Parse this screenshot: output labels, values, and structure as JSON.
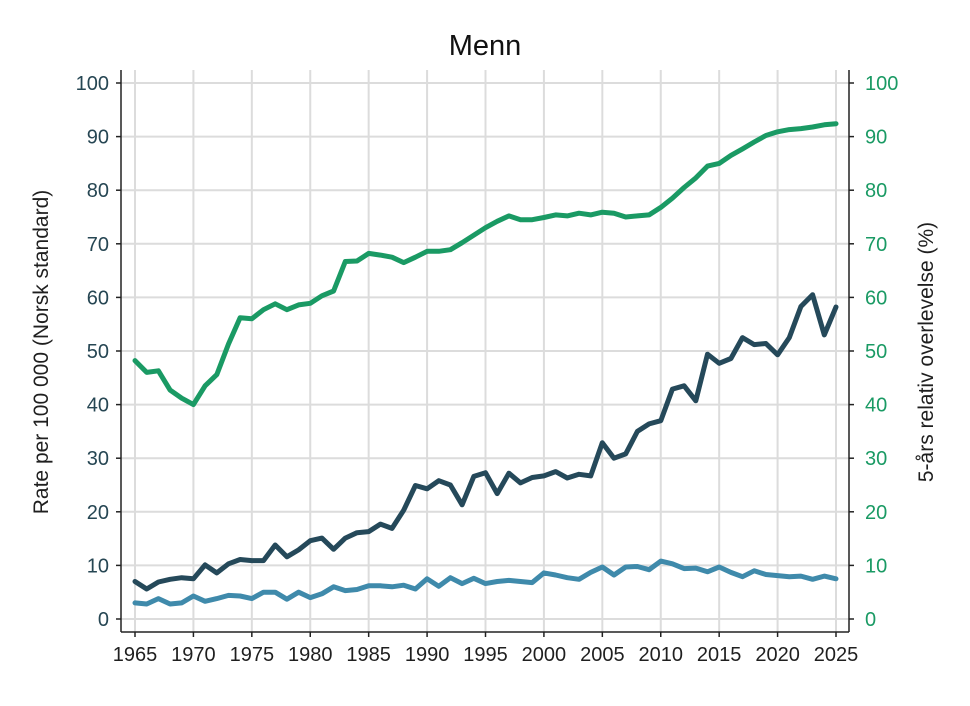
{
  "chart_data": {
    "type": "line",
    "title": "Menn",
    "ylabel": "Rate per 100 000 (Norsk standard)",
    "y2label": "5-års relativ overlevelse (%)",
    "xlim": [
      1965,
      2025
    ],
    "ylim": [
      0,
      100
    ],
    "y2lim": [
      0,
      100
    ],
    "x_ticks": [
      1965,
      1970,
      1975,
      1980,
      1985,
      1990,
      1995,
      2000,
      2005,
      2010,
      2015,
      2020,
      2025
    ],
    "y_ticks": [
      0,
      10,
      20,
      30,
      40,
      50,
      60,
      70,
      80,
      90,
      100
    ],
    "grid": true,
    "x": [
      1965,
      1966,
      1967,
      1968,
      1969,
      1970,
      1971,
      1972,
      1973,
      1974,
      1975,
      1976,
      1977,
      1978,
      1979,
      1980,
      1981,
      1982,
      1983,
      1984,
      1985,
      1986,
      1987,
      1988,
      1989,
      1990,
      1991,
      1992,
      1993,
      1994,
      1995,
      1996,
      1997,
      1998,
      1999,
      2000,
      2001,
      2002,
      2003,
      2004,
      2005,
      2006,
      2007,
      2008,
      2009,
      2010,
      2011,
      2012,
      2013,
      2014,
      2015,
      2016,
      2017,
      2018,
      2019,
      2020,
      2021,
      2022,
      2023,
      2024,
      2025
    ],
    "series": [
      {
        "axis": "right",
        "color": "#1a9a64",
        "values": [
          48.2,
          46.0,
          46.3,
          42.7,
          41.2,
          40.0,
          43.5,
          45.6,
          51.3,
          56.2,
          56.0,
          57.7,
          58.8,
          57.7,
          58.6,
          58.9,
          60.3,
          61.2,
          66.7,
          66.8,
          68.2,
          67.9,
          67.5,
          66.5,
          67.5,
          68.6,
          68.6,
          68.9,
          70.2,
          71.6,
          73.0,
          74.2,
          75.2,
          74.5,
          74.5,
          74.9,
          75.4,
          75.2,
          75.7,
          75.4,
          75.9,
          75.7,
          75.0,
          75.2,
          75.4,
          76.8,
          78.5,
          80.5,
          82.3,
          84.5,
          85.0,
          86.5,
          87.7,
          89.0,
          90.2,
          90.9,
          91.3,
          91.5,
          91.8,
          92.2,
          92.4
        ]
      },
      {
        "axis": "left",
        "color": "#25495a",
        "values": [
          7.0,
          5.6,
          6.9,
          7.4,
          7.7,
          7.5,
          10.1,
          8.6,
          10.3,
          11.1,
          10.9,
          10.9,
          13.8,
          11.6,
          12.9,
          14.6,
          15.1,
          13.0,
          15.1,
          16.1,
          16.3,
          17.7,
          16.9,
          20.3,
          24.9,
          24.3,
          25.8,
          25.0,
          21.3,
          26.6,
          27.3,
          23.4,
          27.2,
          25.4,
          26.4,
          26.7,
          27.5,
          26.3,
          27.0,
          26.7,
          32.9,
          30.0,
          30.8,
          35.0,
          36.4,
          37.0,
          42.9,
          43.5,
          40.7,
          49.4,
          47.7,
          48.6,
          52.5,
          51.2,
          51.4,
          49.3,
          52.5,
          58.3,
          60.5,
          53.0,
          58.2
        ]
      },
      {
        "axis": "left",
        "color": "#3f8aab",
        "values": [
          3.0,
          2.8,
          3.8,
          2.8,
          3.0,
          4.3,
          3.3,
          3.8,
          4.4,
          4.3,
          3.8,
          5.0,
          5.0,
          3.7,
          5.0,
          4.0,
          4.7,
          6.0,
          5.3,
          5.5,
          6.2,
          6.2,
          6.0,
          6.3,
          5.6,
          7.5,
          6.1,
          7.7,
          6.6,
          7.6,
          6.6,
          7.0,
          7.2,
          7.0,
          6.8,
          8.6,
          8.2,
          7.7,
          7.4,
          8.7,
          9.7,
          8.2,
          9.7,
          9.8,
          9.2,
          10.8,
          10.3,
          9.4,
          9.5,
          8.8,
          9.7,
          8.7,
          7.9,
          9.0,
          8.3,
          8.1,
          7.9,
          8.0,
          7.4,
          8.0,
          7.5
        ]
      }
    ]
  }
}
